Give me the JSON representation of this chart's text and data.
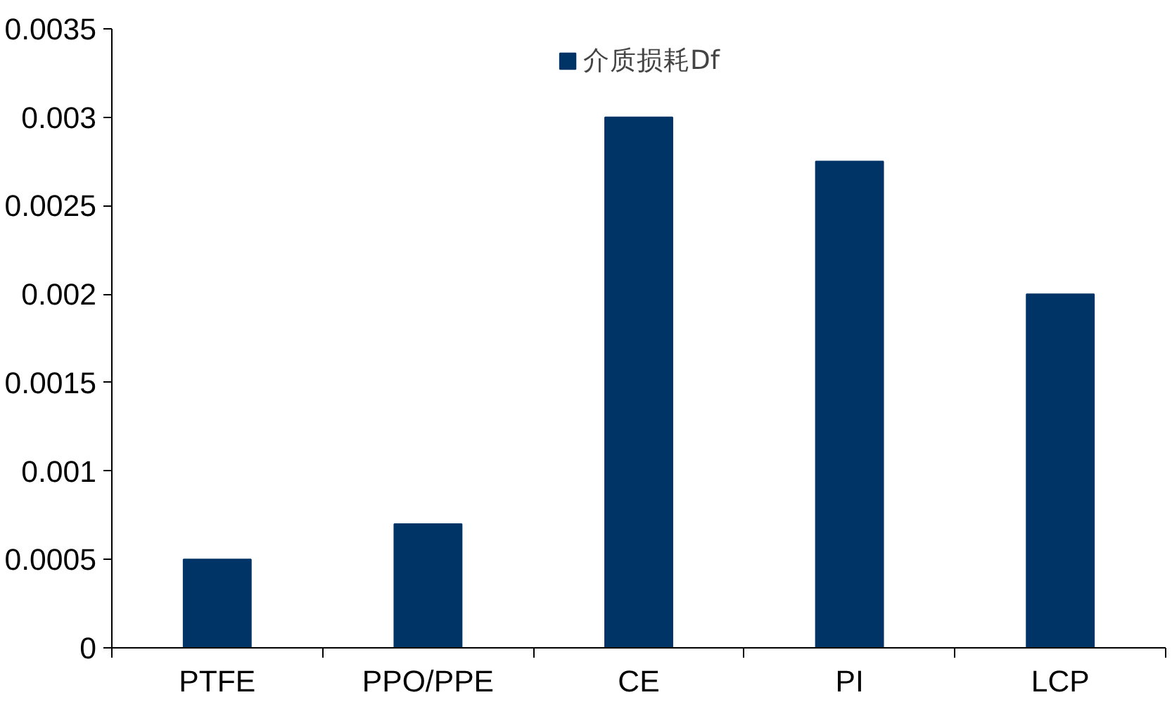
{
  "chart_data": {
    "type": "bar",
    "categories": [
      "PTFE",
      "PPO/PPE",
      "CE",
      "PI",
      "LCP"
    ],
    "series": [
      {
        "name": "介质损耗Df",
        "color": "#003366",
        "values": [
          0.0005,
          0.0007,
          0.003,
          0.00275,
          0.002
        ]
      }
    ],
    "ylim": [
      0,
      0.0035
    ],
    "yticks": [
      0,
      0.0005,
      0.001,
      0.0015,
      0.002,
      0.0025,
      0.003,
      0.0035
    ],
    "legend": "top",
    "grid": false
  }
}
